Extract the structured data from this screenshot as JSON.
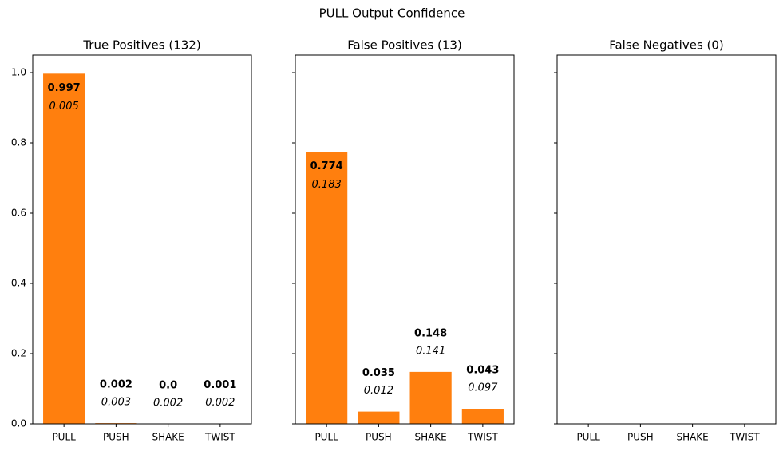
{
  "title": "PULL Output Confidence",
  "chart_data": [
    {
      "type": "bar",
      "title": "True Positives (132)",
      "categories": [
        "PULL",
        "PUSH",
        "SHAKE",
        "TWIST"
      ],
      "values": [
        0.997,
        0.002,
        0.0,
        0.001
      ],
      "value_labels": [
        "0.997",
        "0.002",
        "0.0",
        "0.001"
      ],
      "secondary_values": [
        0.005,
        0.003,
        0.002,
        0.002
      ],
      "color": "#ff7f0e",
      "ylim": [
        0,
        1.05
      ],
      "yticks": [
        {
          "value": 0,
          "label": "0.0"
        },
        0.2,
        0.4,
        0.6,
        0.8,
        {
          "value": 1,
          "label": "1.0"
        }
      ]
    },
    {
      "type": "bar",
      "title": "False Positives (13)",
      "categories": [
        "PULL",
        "PUSH",
        "SHAKE",
        "TWIST"
      ],
      "values": [
        0.774,
        0.035,
        0.148,
        0.043
      ],
      "secondary_values": [
        0.183,
        0.012,
        0.141,
        0.097
      ],
      "color": "#ff7f0e",
      "ylim": [
        0,
        1.05
      ],
      "yticks": [
        0,
        0.2,
        0.4,
        0.6,
        0.8,
        1
      ]
    },
    {
      "type": "bar",
      "title": "False Negatives (0)",
      "categories": [
        "PULL",
        "PUSH",
        "SHAKE",
        "TWIST"
      ],
      "values": [
        null,
        null,
        null,
        null
      ],
      "color": "#ff7f0e",
      "ylim": [
        0,
        1.05
      ],
      "yticks": [
        0,
        0.2,
        0.4,
        0.6,
        0.8,
        1
      ]
    }
  ]
}
